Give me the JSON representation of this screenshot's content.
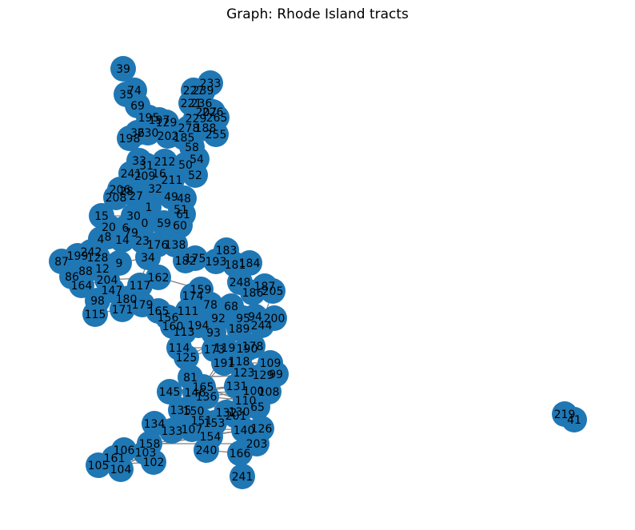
{
  "title": "Graph: Rhode Island tracts",
  "colors": {
    "node": "#1f77b4",
    "edge": "#808080",
    "label": "#000000",
    "background": "#ffffff"
  },
  "nodes": [
    {
      "label": "39"
    },
    {
      "label": "74"
    },
    {
      "label": "35"
    },
    {
      "label": "69"
    },
    {
      "label": "233"
    },
    {
      "label": "227"
    },
    {
      "label": "239"
    },
    {
      "label": "221"
    },
    {
      "label": "236"
    },
    {
      "label": "226"
    },
    {
      "label": "207"
    },
    {
      "label": "265"
    },
    {
      "label": "229"
    },
    {
      "label": "188"
    },
    {
      "label": "278"
    },
    {
      "label": "255"
    },
    {
      "label": "195"
    },
    {
      "label": "197"
    },
    {
      "label": "129"
    },
    {
      "label": "36"
    },
    {
      "label": "230"
    },
    {
      "label": "198"
    },
    {
      "label": "202"
    },
    {
      "label": "58"
    },
    {
      "label": "185"
    },
    {
      "label": "54"
    },
    {
      "label": "50"
    },
    {
      "label": "212"
    },
    {
      "label": "33"
    },
    {
      "label": "31"
    },
    {
      "label": "52"
    },
    {
      "label": "241"
    },
    {
      "label": "209"
    },
    {
      "label": "16"
    },
    {
      "label": "211"
    },
    {
      "label": "32"
    },
    {
      "label": "49"
    },
    {
      "label": "48"
    },
    {
      "label": "28"
    },
    {
      "label": "27"
    },
    {
      "label": "206"
    },
    {
      "label": "208"
    },
    {
      "label": "51"
    },
    {
      "label": "61"
    },
    {
      "label": "1"
    },
    {
      "label": "15"
    },
    {
      "label": "30"
    },
    {
      "label": "0"
    },
    {
      "label": "59"
    },
    {
      "label": "60"
    },
    {
      "label": "20"
    },
    {
      "label": "79"
    },
    {
      "label": "6"
    },
    {
      "label": "4"
    },
    {
      "label": "8"
    },
    {
      "label": "14"
    },
    {
      "label": "23"
    },
    {
      "label": "176"
    },
    {
      "label": "138"
    },
    {
      "label": "87"
    },
    {
      "label": "199"
    },
    {
      "label": "242"
    },
    {
      "label": "128"
    },
    {
      "label": "12"
    },
    {
      "label": "9"
    },
    {
      "label": "34"
    },
    {
      "label": "182"
    },
    {
      "label": "175"
    },
    {
      "label": "183"
    },
    {
      "label": "193"
    },
    {
      "label": "181"
    },
    {
      "label": "184"
    },
    {
      "label": "86"
    },
    {
      "label": "88"
    },
    {
      "label": "164"
    },
    {
      "label": "204"
    },
    {
      "label": "162"
    },
    {
      "label": "117"
    },
    {
      "label": "248"
    },
    {
      "label": "187"
    },
    {
      "label": "186"
    },
    {
      "label": "205"
    },
    {
      "label": "159"
    },
    {
      "label": "174"
    },
    {
      "label": "98"
    },
    {
      "label": "180"
    },
    {
      "label": "147"
    },
    {
      "label": "171"
    },
    {
      "label": "179"
    },
    {
      "label": "115"
    },
    {
      "label": "111"
    },
    {
      "label": "78"
    },
    {
      "label": "68"
    },
    {
      "label": "165"
    },
    {
      "label": "156"
    },
    {
      "label": "92"
    },
    {
      "label": "95"
    },
    {
      "label": "94"
    },
    {
      "label": "200"
    },
    {
      "label": "244"
    },
    {
      "label": "160"
    },
    {
      "label": "194"
    },
    {
      "label": "113"
    },
    {
      "label": "93"
    },
    {
      "label": "189"
    },
    {
      "label": "114"
    },
    {
      "label": "119"
    },
    {
      "label": "125"
    },
    {
      "label": "173"
    },
    {
      "label": "178"
    },
    {
      "label": "190"
    },
    {
      "label": "191"
    },
    {
      "label": "118"
    },
    {
      "label": "109"
    },
    {
      "label": "123"
    },
    {
      "label": "129"
    },
    {
      "label": "99"
    },
    {
      "label": "81"
    },
    {
      "label": "145"
    },
    {
      "label": "165"
    },
    {
      "label": "131"
    },
    {
      "label": "108"
    },
    {
      "label": "100"
    },
    {
      "label": "146"
    },
    {
      "label": "136"
    },
    {
      "label": "110"
    },
    {
      "label": "65"
    },
    {
      "label": "135"
    },
    {
      "label": "150"
    },
    {
      "label": "132"
    },
    {
      "label": "130"
    },
    {
      "label": "134"
    },
    {
      "label": "151"
    },
    {
      "label": "153"
    },
    {
      "label": "126"
    },
    {
      "label": "133"
    },
    {
      "label": "107"
    },
    {
      "label": "154"
    },
    {
      "label": "201"
    },
    {
      "label": "140"
    },
    {
      "label": "203"
    },
    {
      "label": "158"
    },
    {
      "label": "106"
    },
    {
      "label": "103"
    },
    {
      "label": "161"
    },
    {
      "label": "102"
    },
    {
      "label": "105"
    },
    {
      "label": "104"
    },
    {
      "label": "240"
    },
    {
      "label": "166"
    },
    {
      "label": "241"
    },
    {
      "label": "219"
    },
    {
      "label": "41"
    }
  ]
}
